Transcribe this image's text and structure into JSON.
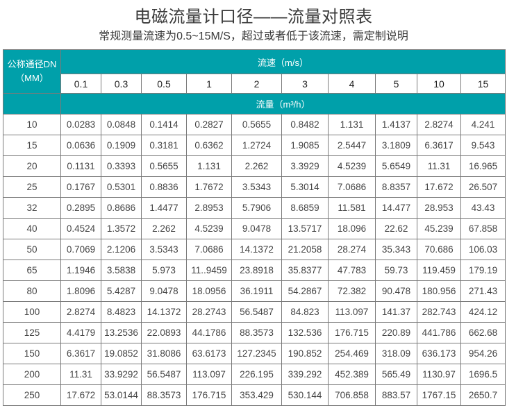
{
  "title": "电磁流量计口径——流量对照表",
  "subtitle": "常规测量流速为0.5~15M/S，超过或者低于该流速，需定制说明",
  "table": {
    "dn_header_line1": "公称通径DN",
    "dn_header_line2": "（MM）",
    "velocity_header": "流速（m/s）",
    "velocities": [
      "0.1",
      "0.3",
      "0.5",
      "1",
      "2",
      "3",
      "4",
      "5",
      "10",
      "15"
    ],
    "flow_header": "流量（m³/h）",
    "rows": [
      [
        "10",
        "0.0283",
        "0.0848",
        "0.1414",
        "0.2827",
        "0.5655",
        "0.8482",
        "1.131",
        "1.4137",
        "2.8274",
        "4.241"
      ],
      [
        "15",
        "0.0636",
        "0.1909",
        "0.3181",
        "0.6362",
        "1.2724",
        "1.9085",
        "2.5447",
        "3.1809",
        "6.3617",
        "9.543"
      ],
      [
        "20",
        "0.1131",
        "0.3393",
        "0.5655",
        "1.131",
        "2.262",
        "3.3929",
        "4.5239",
        "5.6549",
        "11.31",
        "16.965"
      ],
      [
        "25",
        "0.1767",
        "0.5301",
        "0.8836",
        "1.7672",
        "3.5343",
        "5.3014",
        "7.0686",
        "8.8357",
        "17.672",
        "26.507"
      ],
      [
        "32",
        "0.2895",
        "0.8686",
        "1.4477",
        "2.8953",
        "5.7906",
        "8.6859",
        "11.581",
        "14.477",
        "28.953",
        "43.43"
      ],
      [
        "40",
        "0.4524",
        "1.3572",
        "2.262",
        "4.5239",
        "9.0478",
        "13.5717",
        "18.096",
        "22.62",
        "45.239",
        "67.858"
      ],
      [
        "50",
        "0.7069",
        "2.1206",
        "3.5343",
        "7.0686",
        "14.1372",
        "21.2058",
        "28.274",
        "35.343",
        "70.686",
        "106.03"
      ],
      [
        "65",
        "1.1946",
        "3.5838",
        "5.973",
        "11..9459",
        "23.8918",
        "35.8377",
        "47.783",
        "59.73",
        "119.459",
        "179.19"
      ],
      [
        "80",
        "1.8096",
        "5.4287",
        "9.0478",
        "18.0956",
        "36.1911",
        "54.2867",
        "72.382",
        "90.478",
        "180.956",
        "271.43"
      ],
      [
        "100",
        "2.8274",
        "8.4823",
        "14.1372",
        "28.2743",
        "56.5487",
        "84.823",
        "113.097",
        "141.37",
        "282.743",
        "424.12"
      ],
      [
        "125",
        "4.4179",
        "13.2536",
        "22.0893",
        "44.1786",
        "88.3573",
        "132.536",
        "176.715",
        "220.89",
        "441.786",
        "662.68"
      ],
      [
        "150",
        "6.3617",
        "19.0852",
        "31.8086",
        "63.6173",
        "127.2345",
        "190.852",
        "254.469",
        "318.09",
        "636.173",
        "954.26"
      ],
      [
        "200",
        "11.31",
        "33.9292",
        "56.5487",
        "113.097",
        "226.195",
        "339.292",
        "452.389",
        "565.49",
        "1130.97",
        "1696.5"
      ],
      [
        "250",
        "17.672",
        "53.0144",
        "88.3573",
        "176.715",
        "353.429",
        "530.144",
        "706.858",
        "883.57",
        "1767.15",
        "2650.7"
      ]
    ]
  },
  "colors": {
    "header_bg": "#00a0aa",
    "border": "#7a7a7a"
  }
}
